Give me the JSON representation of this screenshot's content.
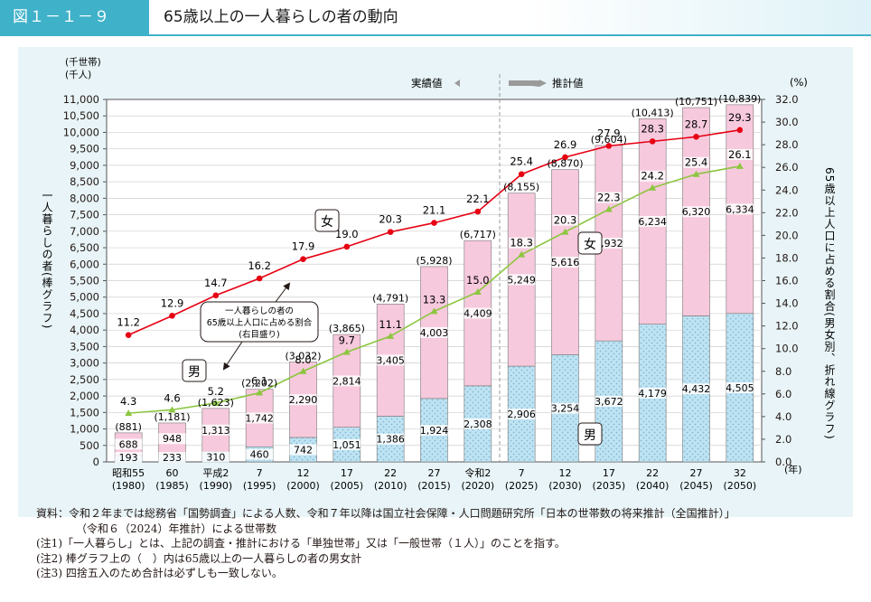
{
  "header": {
    "figure_number": "図１－１－９",
    "title": "65歳以上の一人暮らしの者の動向"
  },
  "chart_data": {
    "type": "bar",
    "stacked": true,
    "left_axis": {
      "units": [
        "(千世帯)",
        "(千人)"
      ],
      "label": "一人暮らしの者(棒グラフ)",
      "ylim": [
        0,
        11000
      ],
      "ticks": [
        "0",
        "500",
        "1,000",
        "1,500",
        "2,000",
        "2,500",
        "3,000",
        "3,500",
        "4,000",
        "4,500",
        "5,000",
        "5,500",
        "6,000",
        "6,500",
        "7,000",
        "7,500",
        "8,000",
        "8,500",
        "9,000",
        "9,500",
        "10,000",
        "10,500",
        "11,000"
      ]
    },
    "right_axis": {
      "unit": "(%)",
      "label": "65歳以上人口に占める割合(男女別、折れ線グラフ)",
      "ylim": [
        0,
        32
      ],
      "ticks": [
        "0.0",
        "2.0",
        "4.0",
        "6.0",
        "8.0",
        "10.0",
        "12.0",
        "14.0",
        "16.0",
        "18.0",
        "20.0",
        "22.0",
        "24.0",
        "26.0",
        "28.0",
        "30.0",
        "32.0"
      ]
    },
    "x_unit": "(年)",
    "categories": [
      {
        "line1": "昭和55",
        "line2": "(1980)"
      },
      {
        "line1": "60",
        "line2": "(1985)"
      },
      {
        "line1": "平成2",
        "line2": "(1990)"
      },
      {
        "line1": "7",
        "line2": "(1995)"
      },
      {
        "line1": "12",
        "line2": "(2000)"
      },
      {
        "line1": "17",
        "line2": "(2005)"
      },
      {
        "line1": "22",
        "line2": "(2010)"
      },
      {
        "line1": "27",
        "line2": "(2015)"
      },
      {
        "line1": "令和2",
        "line2": "(2020)"
      },
      {
        "line1": "7",
        "line2": "(2025)"
      },
      {
        "line1": "12",
        "line2": "(2030)"
      },
      {
        "line1": "17",
        "line2": "(2035)"
      },
      {
        "line1": "22",
        "line2": "(2040)"
      },
      {
        "line1": "27",
        "line2": "(2045)"
      },
      {
        "line1": "32",
        "line2": "(2050)"
      }
    ],
    "male_values": [
      193,
      233,
      310,
      460,
      742,
      1051,
      1386,
      1924,
      2308,
      2906,
      3254,
      3672,
      4179,
      4432,
      4505
    ],
    "male_labels": [
      "193",
      "233",
      "310",
      "460",
      "742",
      "1,051",
      "1,386",
      "1,924",
      "2,308",
      "2,906",
      "3,254",
      "3,672",
      "4,179",
      "4,432",
      "4,505"
    ],
    "female_values": [
      688,
      948,
      1313,
      1742,
      2290,
      2814,
      3405,
      4003,
      4409,
      5249,
      5616,
      5932,
      6234,
      6320,
      6334
    ],
    "female_labels": [
      "688",
      "948",
      "1,313",
      "1,742",
      "2,290",
      "2,814",
      "3,405",
      "4,003",
      "4,409",
      "5,249",
      "5,616",
      "5,932",
      "6,234",
      "6,320",
      "6,334"
    ],
    "total_labels": [
      "(881)",
      "(1,181)",
      "(1,623)",
      "(2,202)",
      "(3,032)",
      "(3,865)",
      "(4,791)",
      "(5,928)",
      "(6,717)",
      "(8,155)",
      "(8,870)",
      "(9,604)",
      "(10,413)",
      "(10,751)",
      "(10,839)"
    ],
    "total_values": [
      881,
      1181,
      1623,
      2202,
      3032,
      3865,
      4791,
      5928,
      6717,
      8155,
      8870,
      9604,
      10413,
      10751,
      10839
    ],
    "female_ratio": [
      11.2,
      12.9,
      14.7,
      16.2,
      17.9,
      19.0,
      20.3,
      21.1,
      22.1,
      25.4,
      26.9,
      27.9,
      28.3,
      28.7,
      29.3
    ],
    "female_ratio_labels": [
      "11.2",
      "12.9",
      "14.7",
      "16.2",
      "17.9",
      "19.0",
      "20.3",
      "21.1",
      "22.1",
      "25.4",
      "26.9",
      "27.9",
      "28.3",
      "28.7",
      "29.3"
    ],
    "male_ratio": [
      4.3,
      4.6,
      5.2,
      6.1,
      8.0,
      9.7,
      11.1,
      13.3,
      15.0,
      18.3,
      20.3,
      22.3,
      24.2,
      25.4,
      26.1
    ],
    "male_ratio_labels": [
      "4.3",
      "4.6",
      "5.2",
      "6.1",
      "8.0",
      "9.7",
      "11.1",
      "13.3",
      "15.0",
      "18.3",
      "20.3",
      "22.3",
      "24.2",
      "25.4",
      "26.1"
    ],
    "period_labels": {
      "actual": "実績値",
      "projected": "推計値"
    },
    "annotations": {
      "female": "女",
      "male": "男",
      "line_note": [
        "一人暮らしの者の",
        "65歳以上人口に占める割合",
        "(右目盛り)"
      ]
    },
    "colors": {
      "background": "#e8f4f7",
      "female_bar": "#f7c9dd",
      "male_bar": "#bfe3f2",
      "female_line": "#e60012",
      "male_line": "#8cc63f",
      "accent": "#3fb1c9"
    }
  },
  "notes": [
    "資料：令和２年までは総務省「国勢調査」による人数、令和７年以降は国立社会保障・人口問題研究所「日本の世帯数の将来推計（全国推計）」",
    "（令和６（2024）年推計）による世帯数",
    "(注1)「一人暮らし」とは、上記の調査・推計における「単独世帯」又は「一般世帯（１人）」のことを指す。",
    "(注2) 棒グラフ上の（　）内は65歳以上の一人暮らしの者の男女計",
    "(注3) 四捨五入のため合計は必ずしも一致しない。"
  ]
}
